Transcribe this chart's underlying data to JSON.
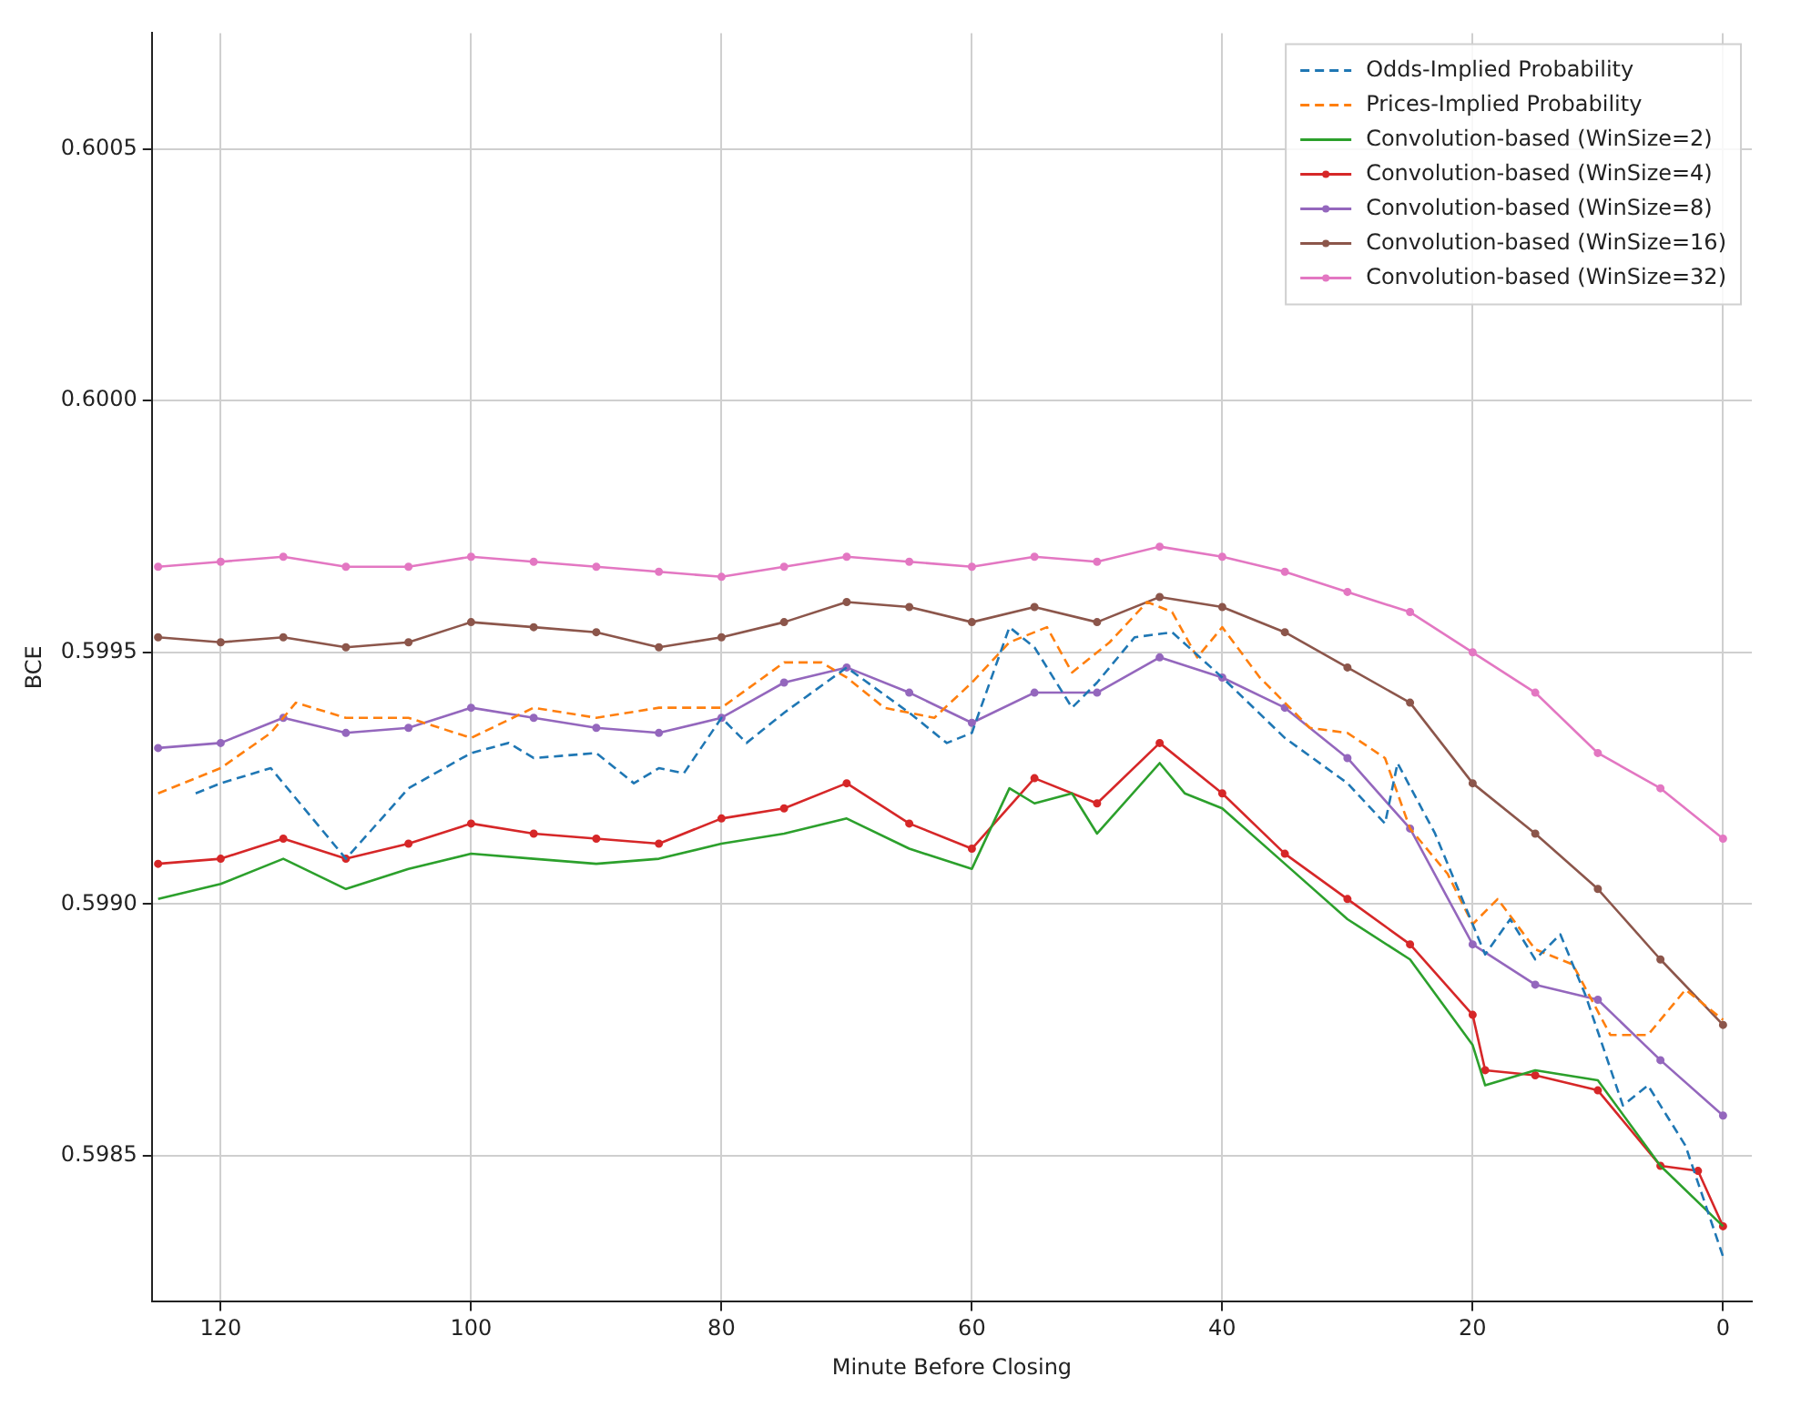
{
  "chart_data": {
    "type": "line",
    "xlabel": "Minute Before Closing",
    "ylabel": "BCE",
    "grid": true,
    "legend": "top right",
    "xlim": [
      125.5,
      -2.3
    ],
    "xticks": [
      120,
      100,
      80,
      60,
      40,
      20,
      0
    ],
    "ylim": [
      0.59821,
      0.60073
    ],
    "yticks": [
      0.5985,
      {
        "value": 0.599,
        "label": "0.5990"
      },
      0.5995,
      {
        "value": 0.6,
        "label": "0.6000"
      },
      0.6005
    ],
    "series": [
      {
        "name": "Odds-Implied Probability",
        "color": "#1f77b4",
        "line_style": "dashed",
        "marker": "none",
        "x": [
          122,
          120,
          116,
          115,
          110,
          105,
          100,
          97,
          95,
          90,
          87,
          85,
          83,
          80,
          78,
          75,
          70,
          65,
          62,
          60,
          57,
          55,
          52,
          50,
          47,
          44,
          40,
          35,
          30,
          27,
          26,
          23,
          20,
          19,
          17,
          15,
          13,
          11,
          8,
          6,
          3,
          0
        ],
        "values": [
          0.59922,
          0.59924,
          0.59927,
          0.59924,
          0.59909,
          0.59923,
          0.5993,
          0.59932,
          0.59929,
          0.5993,
          0.59924,
          0.59927,
          0.59926,
          0.59937,
          0.59932,
          0.59938,
          0.59947,
          0.59938,
          0.59932,
          0.59934,
          0.59955,
          0.59951,
          0.59939,
          0.59944,
          0.59953,
          0.59954,
          0.59945,
          0.59933,
          0.59924,
          0.59916,
          0.59928,
          0.59914,
          0.59896,
          0.5989,
          0.59897,
          0.59889,
          0.59894,
          0.59882,
          0.5986,
          0.59864,
          0.59852,
          0.5983
        ]
      },
      {
        "name": "Prices-Implied Probability",
        "color": "#ff7f0e",
        "line_style": "dashed",
        "marker": "none",
        "x": [
          125,
          120,
          116,
          114,
          110,
          105,
          100,
          95,
          90,
          85,
          80,
          75,
          72,
          70,
          67,
          63,
          60,
          57,
          54,
          52,
          49,
          46,
          44,
          42,
          40,
          37,
          33,
          30,
          27,
          25,
          22,
          20,
          18,
          15,
          12,
          9,
          6,
          3,
          0
        ],
        "values": [
          0.59922,
          0.59927,
          0.59934,
          0.5994,
          0.59937,
          0.59937,
          0.59933,
          0.59939,
          0.59937,
          0.59939,
          0.59939,
          0.59948,
          0.59948,
          0.59945,
          0.59939,
          0.59937,
          0.59944,
          0.59952,
          0.59955,
          0.59946,
          0.59952,
          0.5996,
          0.59958,
          0.59949,
          0.59955,
          0.59945,
          0.59935,
          0.59934,
          0.59929,
          0.59915,
          0.59906,
          0.59896,
          0.59901,
          0.59891,
          0.59888,
          0.59874,
          0.59874,
          0.59883,
          0.59877
        ]
      },
      {
        "name": "Convolution-based (WinSize=2)",
        "color": "#2ca02c",
        "line_style": "solid",
        "marker": "none",
        "x": [
          125,
          120,
          115,
          110,
          105,
          100,
          95,
          90,
          85,
          80,
          75,
          70,
          65,
          60,
          57,
          55,
          52,
          50,
          45,
          43,
          40,
          35,
          30,
          25,
          20,
          19,
          15,
          10,
          5,
          0
        ],
        "values": [
          0.59901,
          0.59904,
          0.59909,
          0.59903,
          0.59907,
          0.5991,
          0.59909,
          0.59908,
          0.59909,
          0.59912,
          0.59914,
          0.59917,
          0.59911,
          0.59907,
          0.59923,
          0.5992,
          0.59922,
          0.59914,
          0.59928,
          0.59922,
          0.59919,
          0.59908,
          0.59897,
          0.59889,
          0.59872,
          0.59864,
          0.59867,
          0.59865,
          0.59848,
          0.59836
        ]
      },
      {
        "name": "Convolution-based (WinSize=4)",
        "color": "#d62728",
        "line_style": "solid",
        "marker": "circle",
        "x": [
          125,
          120,
          115,
          110,
          105,
          100,
          95,
          90,
          85,
          80,
          75,
          70,
          65,
          60,
          55,
          50,
          45,
          40,
          35,
          30,
          25,
          20,
          19,
          15,
          10,
          5,
          2,
          0
        ],
        "values": [
          0.59908,
          0.59909,
          0.59913,
          0.59909,
          0.59912,
          0.59916,
          0.59914,
          0.59913,
          0.59912,
          0.59917,
          0.59919,
          0.59924,
          0.59916,
          0.59911,
          0.59925,
          0.5992,
          0.59932,
          0.59922,
          0.5991,
          0.59901,
          0.59892,
          0.59878,
          0.59867,
          0.59866,
          0.59863,
          0.59848,
          0.59847,
          0.59836
        ]
      },
      {
        "name": "Convolution-based (WinSize=8)",
        "color": "#9467bd",
        "line_style": "solid",
        "marker": "circle",
        "x": [
          125,
          120,
          115,
          110,
          105,
          100,
          95,
          90,
          85,
          80,
          75,
          70,
          65,
          60,
          55,
          50,
          45,
          40,
          35,
          30,
          25,
          20,
          15,
          10,
          5,
          0
        ],
        "values": [
          0.59931,
          0.59932,
          0.59937,
          0.59934,
          0.59935,
          0.59939,
          0.59937,
          0.59935,
          0.59934,
          0.59937,
          0.59944,
          0.59947,
          0.59942,
          0.59936,
          0.59942,
          0.59942,
          0.59949,
          0.59945,
          0.59939,
          0.59929,
          0.59915,
          0.59892,
          0.59884,
          0.59881,
          0.59869,
          0.59858
        ]
      },
      {
        "name": "Convolution-based (WinSize=16)",
        "color": "#8c564b",
        "line_style": "solid",
        "marker": "circle",
        "x": [
          125,
          120,
          115,
          110,
          105,
          100,
          95,
          90,
          85,
          80,
          75,
          70,
          65,
          60,
          55,
          50,
          45,
          40,
          35,
          30,
          25,
          20,
          15,
          10,
          5,
          0
        ],
        "values": [
          0.59953,
          0.59952,
          0.59953,
          0.59951,
          0.59952,
          0.59956,
          0.59955,
          0.59954,
          0.59951,
          0.59953,
          0.59956,
          0.5996,
          0.59959,
          0.59956,
          0.59959,
          0.59956,
          0.59961,
          0.59959,
          0.59954,
          0.59947,
          0.5994,
          0.59924,
          0.59914,
          0.59903,
          0.59889,
          0.59876
        ]
      },
      {
        "name": "Convolution-based (WinSize=32)",
        "color": "#e377c2",
        "line_style": "solid",
        "marker": "circle",
        "x": [
          125,
          120,
          115,
          110,
          105,
          100,
          95,
          90,
          85,
          80,
          75,
          70,
          65,
          60,
          55,
          50,
          45,
          40,
          35,
          30,
          25,
          20,
          15,
          10,
          5,
          0
        ],
        "values": [
          0.59967,
          0.59968,
          0.59969,
          0.59967,
          0.59967,
          0.59969,
          0.59968,
          0.59967,
          0.59966,
          0.59965,
          0.59967,
          0.59969,
          0.59968,
          0.59967,
          0.59969,
          0.59968,
          0.59971,
          0.59969,
          0.59966,
          0.59962,
          0.59958,
          0.5995,
          0.59942,
          0.5993,
          0.59923,
          0.59913
        ]
      }
    ]
  }
}
